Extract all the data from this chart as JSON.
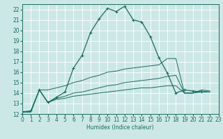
{
  "xlabel": "Humidex (Indice chaleur)",
  "background_color": "#cce8e6",
  "line_color": "#1a6b5e",
  "grid_color": "#b8d8d5",
  "xlim": [
    0,
    23
  ],
  "ylim": [
    12,
    22.5
  ],
  "xticks": [
    0,
    1,
    2,
    3,
    4,
    5,
    6,
    7,
    8,
    9,
    10,
    11,
    12,
    13,
    14,
    15,
    16,
    17,
    18,
    19,
    20,
    21,
    22,
    23
  ],
  "yticks": [
    12,
    13,
    14,
    15,
    16,
    17,
    18,
    19,
    20,
    21,
    22
  ],
  "curve_main": {
    "x": [
      0,
      1,
      2,
      3,
      4,
      5,
      6,
      7,
      8,
      9,
      10,
      11,
      12,
      13,
      14,
      15,
      16,
      17,
      18,
      19,
      20,
      21,
      22
    ],
    "y": [
      12.2,
      12.3,
      14.3,
      13.1,
      13.6,
      14.1,
      16.4,
      17.6,
      19.8,
      21.1,
      22.1,
      21.8,
      22.3,
      21.0,
      20.8,
      19.4,
      17.4,
      15.9,
      14.0,
      14.3,
      14.2,
      14.1,
      null
    ]
  },
  "curve_high": {
    "x": [
      0,
      1,
      2,
      3,
      4,
      5,
      6,
      7,
      8,
      9,
      10,
      11,
      12,
      13,
      14,
      15,
      16,
      17,
      18,
      19,
      20,
      21,
      22
    ],
    "y": [
      12.2,
      12.2,
      14.3,
      14.3,
      14.5,
      14.7,
      15.0,
      15.2,
      15.5,
      15.7,
      16.0,
      16.1,
      16.3,
      16.4,
      16.5,
      16.6,
      16.7,
      17.3,
      17.3,
      14.0,
      14.0,
      14.3,
      14.2
    ]
  },
  "curve_mid": {
    "x": [
      0,
      1,
      2,
      3,
      4,
      5,
      6,
      7,
      8,
      9,
      10,
      11,
      12,
      13,
      14,
      15,
      16,
      17,
      18,
      19,
      20,
      21,
      22
    ],
    "y": [
      12.2,
      12.2,
      14.3,
      13.1,
      13.5,
      13.7,
      14.0,
      14.1,
      14.3,
      14.5,
      14.7,
      14.8,
      15.0,
      15.1,
      15.2,
      15.3,
      15.4,
      15.6,
      15.7,
      14.0,
      14.0,
      14.2,
      14.1
    ]
  },
  "curve_low": {
    "x": [
      0,
      1,
      2,
      3,
      4,
      5,
      6,
      7,
      8,
      9,
      10,
      11,
      12,
      13,
      14,
      15,
      16,
      17,
      18,
      19,
      20,
      21,
      22
    ],
    "y": [
      12.2,
      12.2,
      14.3,
      13.1,
      13.4,
      13.5,
      13.7,
      13.8,
      13.9,
      14.0,
      14.1,
      14.2,
      14.3,
      14.4,
      14.5,
      14.5,
      14.6,
      14.7,
      14.7,
      14.0,
      14.0,
      14.1,
      14.1
    ]
  }
}
